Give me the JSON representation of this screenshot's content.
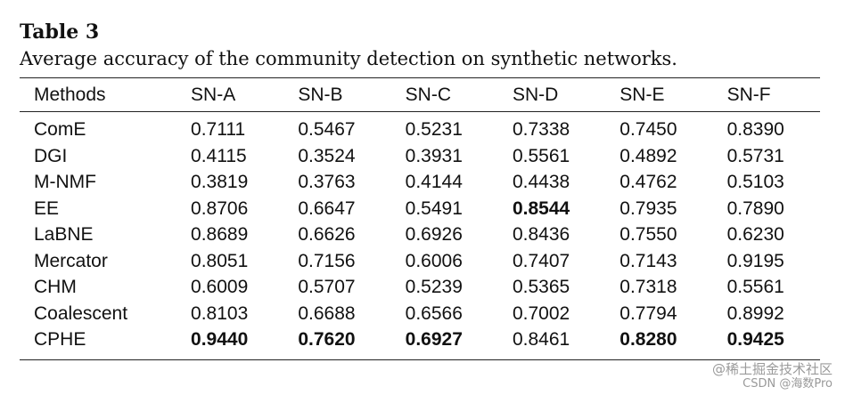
{
  "title": "Table 3",
  "caption": "Average accuracy of the community detection on synthetic networks.",
  "columns": [
    "Methods",
    "SN-A",
    "SN-B",
    "SN-C",
    "SN-D",
    "SN-E",
    "SN-F"
  ],
  "rows": [
    {
      "method": "ComE",
      "values": [
        "0.7111",
        "0.5467",
        "0.5231",
        "0.7338",
        "0.7450",
        "0.8390"
      ]
    },
    {
      "method": "DGI",
      "values": [
        "0.4115",
        "0.3524",
        "0.3931",
        "0.5561",
        "0.4892",
        "0.5731"
      ]
    },
    {
      "method": "M-NMF",
      "values": [
        "0.3819",
        "0.3763",
        "0.4144",
        "0.4438",
        "0.4762",
        "0.5103"
      ]
    },
    {
      "method": "EE",
      "values": [
        "0.8706",
        "0.6647",
        "0.5491",
        "0.8544",
        "0.7935",
        "0.7890"
      ]
    },
    {
      "method": "LaBNE",
      "values": [
        "0.8689",
        "0.6626",
        "0.6926",
        "0.8436",
        "0.7550",
        "0.6230"
      ]
    },
    {
      "method": "Mercator",
      "values": [
        "0.8051",
        "0.7156",
        "0.6006",
        "0.7407",
        "0.7143",
        "0.9195"
      ]
    },
    {
      "method": "CHM",
      "values": [
        "0.6009",
        "0.5707",
        "0.5239",
        "0.5365",
        "0.7318",
        "0.5561"
      ]
    },
    {
      "method": "Coalescent",
      "values": [
        "0.8103",
        "0.6688",
        "0.6566",
        "0.7002",
        "0.7794",
        "0.8992"
      ]
    },
    {
      "method": "CPHE",
      "values": [
        "0.9440",
        "0.7620",
        "0.6927",
        "0.8461",
        "0.8280",
        "0.9425"
      ]
    }
  ],
  "bold_cells": [
    [
      3,
      3
    ],
    [
      8,
      0
    ],
    [
      8,
      1
    ],
    [
      8,
      2
    ],
    [
      8,
      4
    ],
    [
      8,
      5
    ]
  ],
  "watermark": {
    "line1": "@稀土掘金技术社区",
    "line2": "CSDN @海数Pro"
  }
}
